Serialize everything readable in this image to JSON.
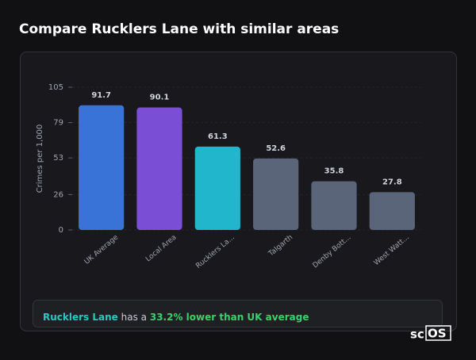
{
  "chart_data": {
    "type": "bar",
    "title": "Compare Rucklers Lane with similar areas",
    "y_label": "Crimes per 1,000",
    "categories": [
      "UK Average",
      "Local Area",
      "Rucklers La...",
      "Talgarth",
      "Denby Bott...",
      "West Watt..."
    ],
    "values": [
      91.7,
      90.1,
      61.3,
      52.6,
      35.8,
      27.8
    ],
    "colors": [
      "#3a73d8",
      "#7a4fd5",
      "#22b6cc",
      "#5b6579",
      "#5b6579",
      "#5b6579"
    ],
    "ylim": [
      0,
      105
    ],
    "yticks": [
      0,
      26,
      53,
      79,
      105
    ],
    "grid": true
  },
  "summary": {
    "area": "Rucklers Lane",
    "text": "has a",
    "highlight": "33.2% lower than UK average"
  },
  "logo": {
    "left": "sc",
    "right": "OS"
  }
}
